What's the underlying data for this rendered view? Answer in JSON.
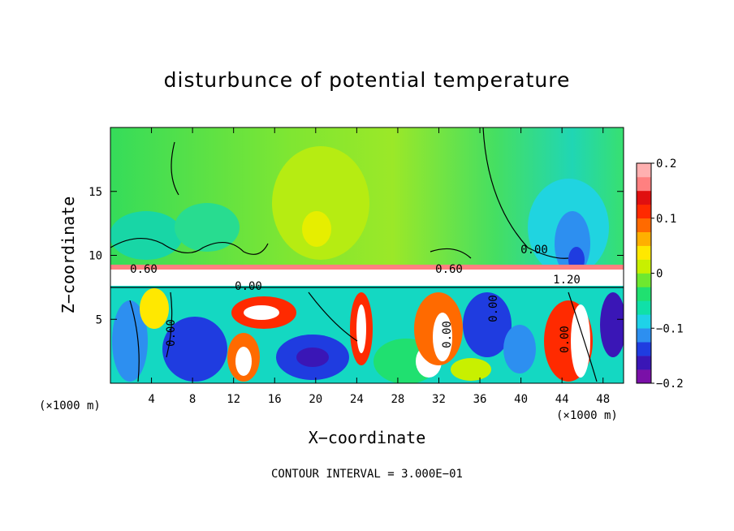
{
  "chart_data": {
    "type": "heatmap",
    "title": "disturbunce of potential temperature",
    "xlabel": "X−coordinate",
    "ylabel": "Z−coordinate",
    "x_unit": "(×1000 m)",
    "y_unit": "(×1000 m)",
    "xlim": [
      0,
      50
    ],
    "ylim": [
      0,
      20
    ],
    "x_ticks": [
      "4",
      "8",
      "12",
      "16",
      "20",
      "24",
      "28",
      "32",
      "36",
      "40",
      "44",
      "48"
    ],
    "y_ticks": [
      "5",
      "10",
      "15"
    ],
    "colorbar": {
      "range": [
        -0.2,
        0.2
      ],
      "ticks": [
        "0.2",
        "0.1",
        "0",
        "−0.1",
        "−0.2"
      ],
      "colors": [
        "#7a10a8",
        "#3a16b6",
        "#1f3ce0",
        "#2d8ff0",
        "#1fd2e8",
        "#10e0a8",
        "#20e070",
        "#6ee830",
        "#c8f000",
        "#ffe800",
        "#ffb000",
        "#ff6a00",
        "#ff2a00",
        "#e01010",
        "#ff8080",
        "#ffb0b0"
      ]
    },
    "contour_labels": [
      "0.60",
      "0.00",
      "0.60",
      "0.00",
      "1.20",
      "0.00",
      "0.00",
      "0.00",
      "0.00"
    ],
    "caption": "CONTOUR INTERVAL = 3.000E−01"
  }
}
